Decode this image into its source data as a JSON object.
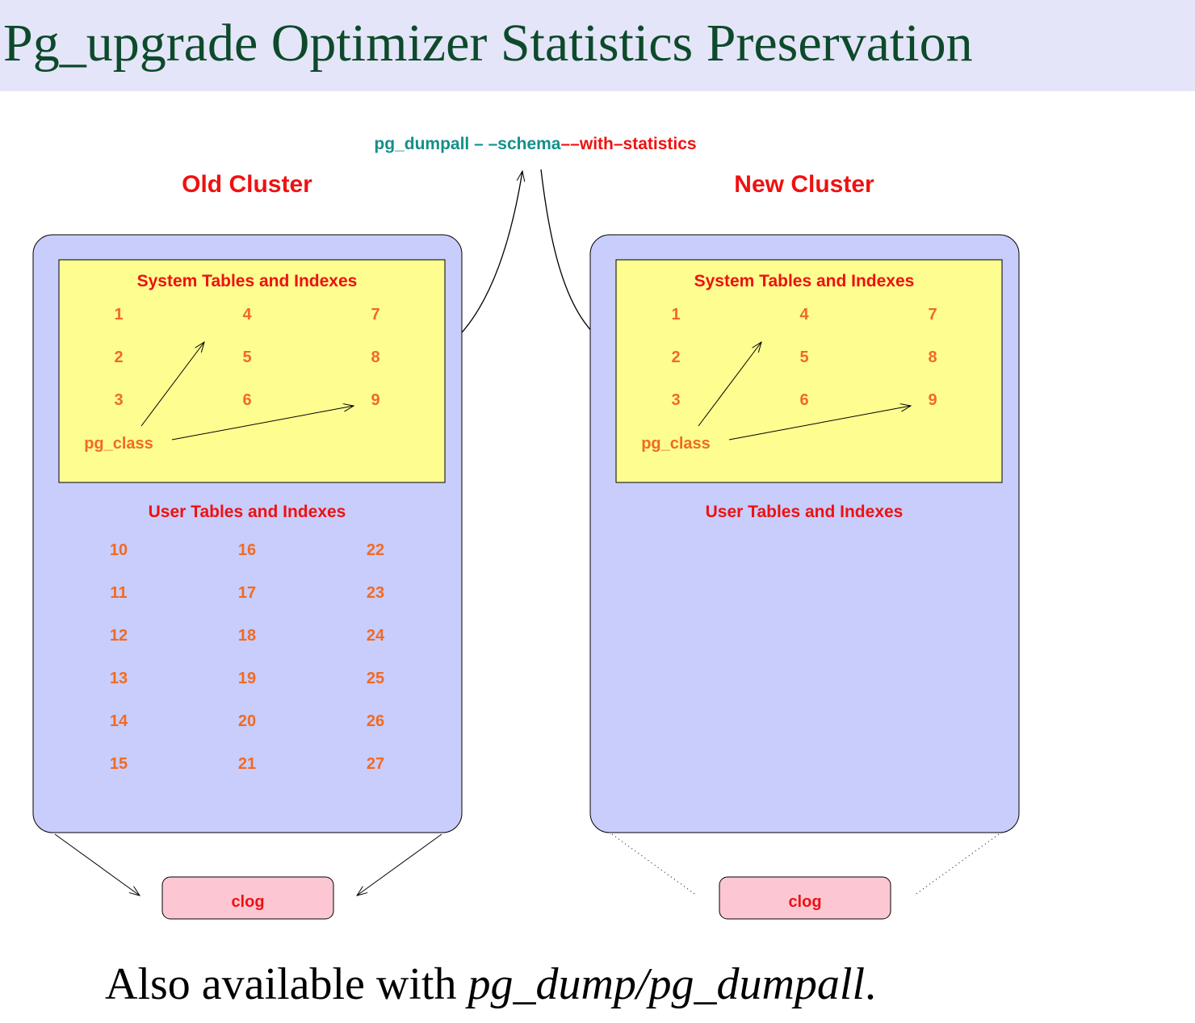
{
  "header": {
    "title": "Pg_upgrade Optimizer Statistics Preservation"
  },
  "command": {
    "part1": "pg_dumpall – –schema",
    "part2": "––with–statistics"
  },
  "clusters": [
    {
      "label": "Old Cluster",
      "system_label": "System Tables and Indexes",
      "system_items": [
        "1",
        "2",
        "3",
        "4",
        "5",
        "6",
        "7",
        "8",
        "9"
      ],
      "catalog": "pg_class",
      "user_label": "User Tables and Indexes",
      "user_items": [
        "10",
        "11",
        "12",
        "13",
        "14",
        "15",
        "16",
        "17",
        "18",
        "19",
        "20",
        "21",
        "22",
        "23",
        "24",
        "25",
        "26",
        "27"
      ],
      "clog": "clog"
    },
    {
      "label": "New Cluster",
      "system_label": "System Tables and Indexes",
      "system_items": [
        "1",
        "2",
        "3",
        "4",
        "5",
        "6",
        "7",
        "8",
        "9"
      ],
      "catalog": "pg_class",
      "user_label": "User Tables and Indexes",
      "user_items": [],
      "clog": "clog"
    }
  ],
  "footer": {
    "text": "Also available with ",
    "emphasis": "pg_dump/pg_dumpall",
    "end": "."
  }
}
